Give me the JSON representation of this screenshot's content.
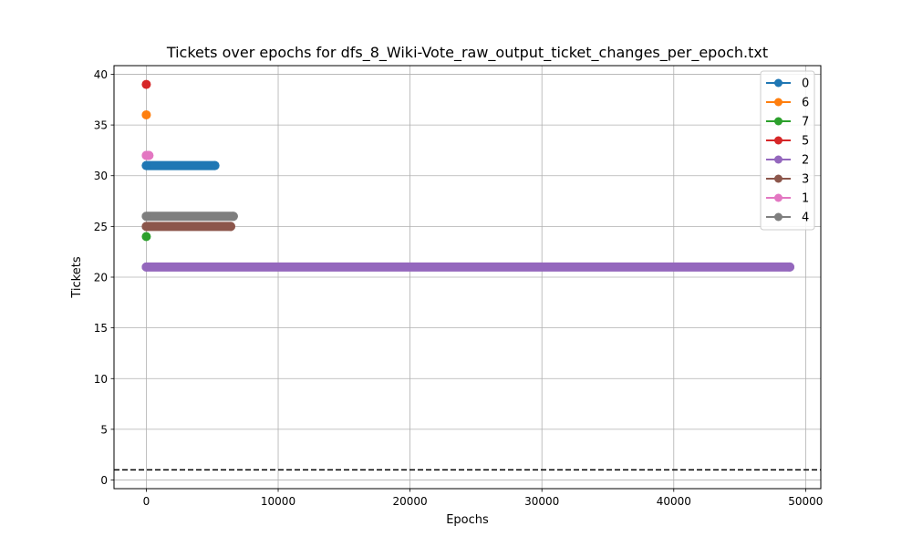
{
  "chart_data": {
    "type": "scatter",
    "title": "Tickets over epochs for dfs_8_Wiki-Vote_raw_output_ticket_changes_per_epoch.txt",
    "xlabel": "Epochs",
    "ylabel": "Tickets",
    "xlim": [
      -2450,
      51150
    ],
    "ylim": [
      -0.85,
      40.85
    ],
    "xticks": [
      0,
      10000,
      20000,
      30000,
      40000,
      50000
    ],
    "yticks": [
      0,
      5,
      10,
      15,
      20,
      25,
      30,
      35,
      40
    ],
    "grid": true,
    "legend_position": "top-right",
    "reference_line": {
      "y": 1,
      "style": "dashed",
      "color": "#000000"
    },
    "series": [
      {
        "name": "0",
        "color": "#1f77b4",
        "points": [
          [
            0,
            31
          ],
          [
            5200,
            31
          ]
        ]
      },
      {
        "name": "6",
        "color": "#ff7f0e",
        "points": [
          [
            0,
            36
          ]
        ]
      },
      {
        "name": "7",
        "color": "#2ca02c",
        "points": [
          [
            0,
            24
          ]
        ]
      },
      {
        "name": "5",
        "color": "#d62728",
        "points": [
          [
            0,
            39
          ]
        ]
      },
      {
        "name": "2",
        "color": "#9467bd",
        "points": [
          [
            0,
            21
          ],
          [
            48800,
            21
          ]
        ]
      },
      {
        "name": "3",
        "color": "#8c564b",
        "points": [
          [
            0,
            25
          ],
          [
            6400,
            25
          ]
        ]
      },
      {
        "name": "1",
        "color": "#e377c2",
        "points": [
          [
            0,
            32
          ],
          [
            200,
            32
          ]
        ]
      },
      {
        "name": "4",
        "color": "#7f7f7f",
        "points": [
          [
            0,
            26
          ],
          [
            6600,
            26
          ]
        ]
      }
    ],
    "draw_order": [
      "4",
      "1",
      "3",
      "5",
      "6",
      "0",
      "2",
      "7"
    ]
  }
}
